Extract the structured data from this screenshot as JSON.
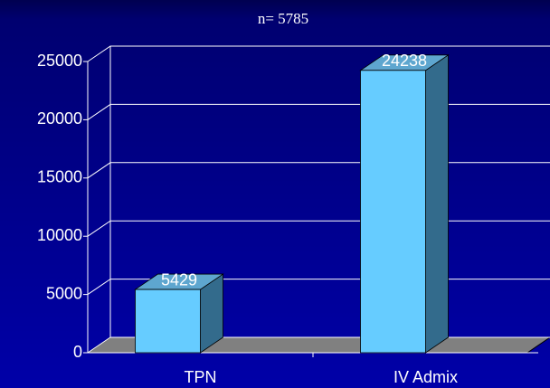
{
  "chart_data": {
    "type": "bar",
    "title": "n= 5785",
    "categories": [
      "TPN",
      "IV Admix"
    ],
    "values": [
      5429,
      24238
    ],
    "color": "#66ccff",
    "ylim": [
      0,
      25000
    ],
    "yticks": [
      0,
      5000,
      10000,
      15000,
      20000,
      25000
    ],
    "grid": true
  }
}
